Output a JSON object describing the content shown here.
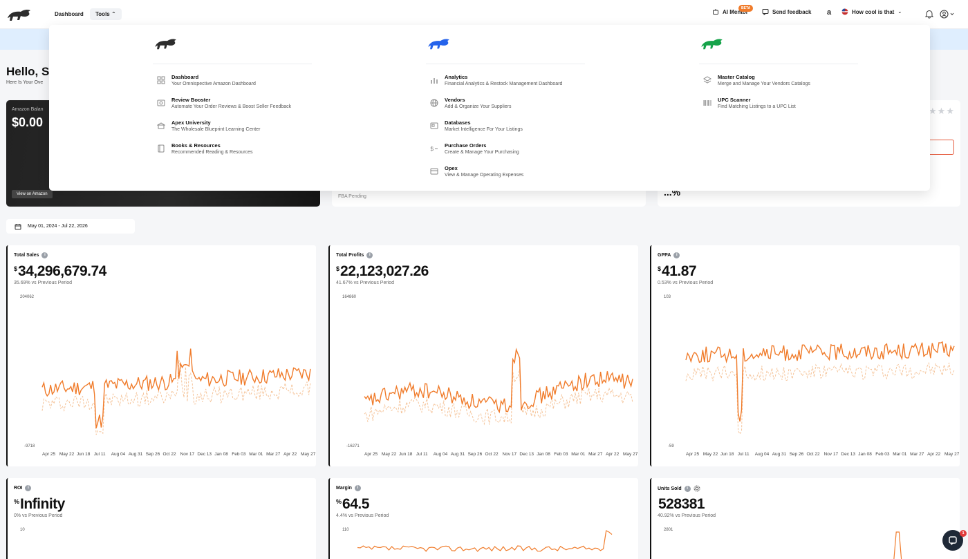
{
  "nav": {
    "links": [
      "Dashboard",
      "Tools"
    ],
    "ai_mentor": "AI Mentor",
    "beta": "BETA",
    "send_feedback": "Send feedback",
    "amazon_mark": "a",
    "account": "How cool is that"
  },
  "greeting": {
    "title": "Hello, S",
    "subtitle": "Here Is Your Ove"
  },
  "balance": {
    "label": "Amazon Balan",
    "value": "$0.00",
    "button": "View on Amazon"
  },
  "mid_card": {
    "fba_label": "FBA Pending"
  },
  "right_card": {
    "stars": "★★★",
    "value": "...%"
  },
  "date_range": "May 01, 2024 - Jul 22, 2026",
  "x_labels": [
    "Apr 25",
    "May 22",
    "Jun 18",
    "Jul 11",
    "Aug 04",
    "Aug 31",
    "Sep 26",
    "Oct 22",
    "Nov 17",
    "Dec 13",
    "Jan 08",
    "Feb 03",
    "Mar 01",
    "Mar 27",
    "Apr 22",
    "May 27"
  ],
  "metrics": [
    {
      "title": "Total Sales",
      "unit": "$",
      "value": "34,296,679.74",
      "change": "35.69% vs Previous Period",
      "ymax": "204062",
      "ymin": "-9718"
    },
    {
      "title": "Total Profits",
      "unit": "$",
      "value": "22,123,027.26",
      "change": "41.67% vs Previous Period",
      "ymax": "164860",
      "ymin": "-16271"
    },
    {
      "title": "GPPA",
      "unit": "$",
      "value": "41.87",
      "change": "0.53% vs Previous Period",
      "ymax": "103",
      "ymin": "-59"
    },
    {
      "title": "ROI",
      "unit": "%",
      "value": "Infinity",
      "change": "0% vs Previous Period",
      "ymax": "10"
    },
    {
      "title": "Margin",
      "unit": "%",
      "value": "64.5",
      "change": "4.4% vs Previous Period",
      "ymax": "110"
    },
    {
      "title": "Units Sold",
      "unit": "",
      "value": "528381",
      "change": "40.92% vs Previous Period",
      "ymax": "2801"
    }
  ],
  "tools_menu": {
    "columns": [
      {
        "logo_color": "#2d2d2d",
        "items": [
          {
            "title": "Dashboard",
            "desc": "Your Omnispective Amazon Dashboard",
            "icon": "grid-icon"
          },
          {
            "title": "Review Booster",
            "desc": "Automate Your Order Reviews & Boost Seller Feedback",
            "icon": "review-icon"
          },
          {
            "title": "Apex University",
            "desc": "The Wholesale Blueprint Learning Center",
            "icon": "university-icon"
          },
          {
            "title": "Books & Resources",
            "desc": "Recommended Reading & Resources",
            "icon": "book-icon"
          }
        ]
      },
      {
        "logo_color": "#2563eb",
        "items": [
          {
            "title": "Analytics",
            "desc": "Financial Analytics & Restock Management Dashboard",
            "icon": "bar-chart-icon"
          },
          {
            "title": "Vendors",
            "desc": "Add & Organize Your Suppliers",
            "icon": "globe-icon"
          },
          {
            "title": "Databases",
            "desc": "Market Intelligence For Your Listings",
            "icon": "database-icon"
          },
          {
            "title": "Purchase Orders",
            "desc": "Create & Manage Your Purchasing",
            "icon": "purchase-icon"
          },
          {
            "title": "Opex",
            "desc": "View & Manage Operating Expenses",
            "icon": "card-icon"
          }
        ]
      },
      {
        "logo_color": "#16a34a",
        "items": [
          {
            "title": "Master Catalog",
            "desc": "Merge and Manage Your Vendors Catalogs",
            "icon": "layers-icon"
          },
          {
            "title": "UPC Scanner",
            "desc": "Find Matching Listings to a UPC List",
            "icon": "barcode-icon"
          }
        ]
      }
    ]
  },
  "chat_badge": "1",
  "colors": {
    "accent": "#f07b2a",
    "accent_light": "#f5c49a"
  }
}
